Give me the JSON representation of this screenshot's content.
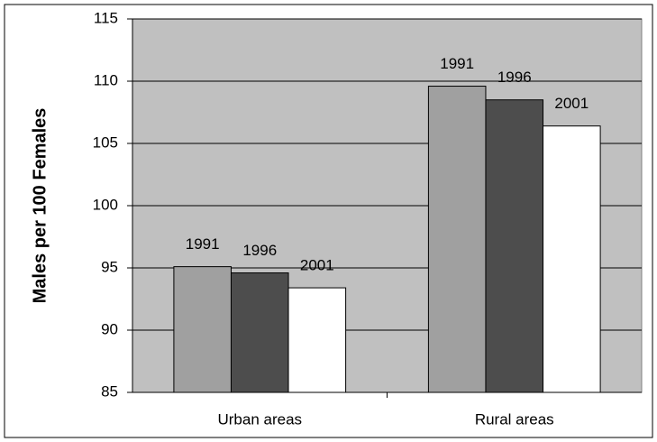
{
  "chart_data": {
    "type": "bar",
    "y_label": "Males per 100 Females",
    "categories": [
      "Urban areas",
      "Rural areas"
    ],
    "series": [
      {
        "name": "1991",
        "color": "#a0a0a0",
        "values": [
          95.1,
          109.6
        ]
      },
      {
        "name": "1996",
        "color": "#4d4d4d",
        "values": [
          94.6,
          108.5
        ]
      },
      {
        "name": "2001",
        "color": "#ffffff",
        "values": [
          93.4,
          106.4
        ]
      }
    ],
    "ylim": [
      85,
      115
    ],
    "yticks": [
      85,
      90,
      95,
      100,
      105,
      110,
      115
    ],
    "grid": true,
    "plot_background": "#c0c0c0"
  }
}
